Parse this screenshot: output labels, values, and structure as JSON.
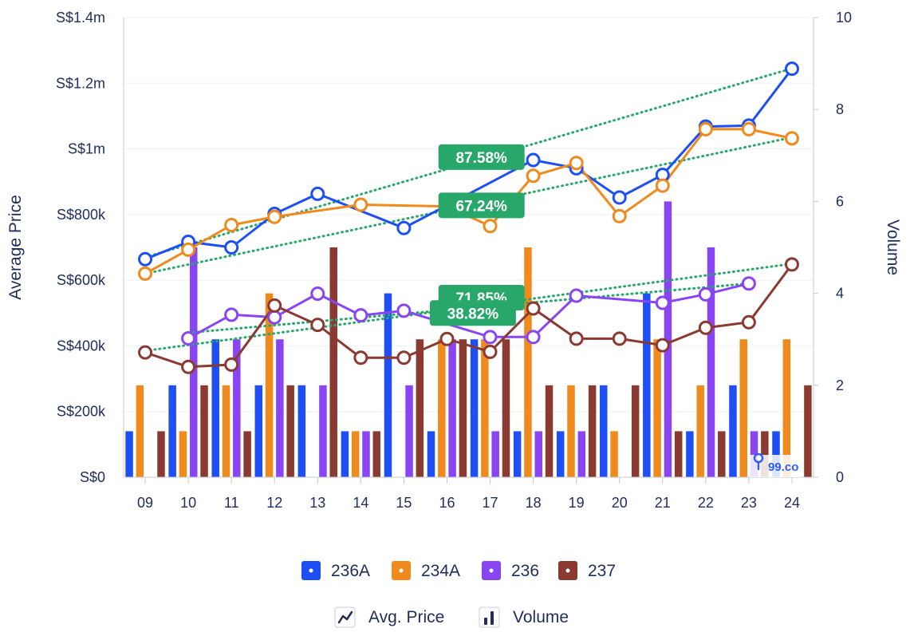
{
  "watermark": "99.co",
  "chart_data": {
    "type": "bar+line",
    "title": "",
    "xlabel": "",
    "ylabel": "Average Price",
    "y2label": "Volume",
    "categories": [
      "09",
      "10",
      "11",
      "12",
      "13",
      "14",
      "15",
      "16",
      "17",
      "18",
      "19",
      "20",
      "21",
      "22",
      "23",
      "24"
    ],
    "ylim": [
      0,
      1400000
    ],
    "y2lim": [
      0,
      10
    ],
    "y_ticks": [
      {
        "v": 0,
        "label": "S$0"
      },
      {
        "v": 200000,
        "label": "S$200k"
      },
      {
        "v": 400000,
        "label": "S$400k"
      },
      {
        "v": 600000,
        "label": "S$600k"
      },
      {
        "v": 800000,
        "label": "S$800k"
      },
      {
        "v": 1000000,
        "label": "S$1m"
      },
      {
        "v": 1200000,
        "label": "S$1.2m"
      },
      {
        "v": 1400000,
        "label": "S$1.4m"
      }
    ],
    "y2_ticks": [
      {
        "v": 0,
        "label": "0"
      },
      {
        "v": 2,
        "label": "2"
      },
      {
        "v": 4,
        "label": "4"
      },
      {
        "v": 6,
        "label": "6"
      },
      {
        "v": 8,
        "label": "8"
      },
      {
        "v": 10,
        "label": "10"
      }
    ],
    "series": [
      {
        "name": "236A",
        "color": "#1e4ff5",
        "volume": [
          1,
          2,
          3,
          2,
          2,
          1,
          4,
          1,
          3,
          1,
          1,
          2,
          4,
          1,
          2,
          1
        ],
        "avg_price": [
          664000,
          717000,
          700000,
          802000,
          863000,
          null,
          759000,
          null,
          null,
          966000,
          941000,
          852000,
          921000,
          1068000,
          1071000,
          1244000
        ]
      },
      {
        "name": "234A",
        "color": "#f08a1c",
        "volume": [
          2,
          1,
          2,
          4,
          0,
          1,
          0,
          3,
          3,
          5,
          2,
          1,
          3,
          2,
          3,
          3
        ],
        "avg_price": [
          620000,
          693000,
          768000,
          793000,
          null,
          830000,
          null,
          825000,
          765000,
          918000,
          957000,
          795000,
          888000,
          1060000,
          1060000,
          1032000
        ]
      },
      {
        "name": "236",
        "color": "#8a45f2",
        "volume": [
          0,
          5,
          3,
          3,
          2,
          1,
          2,
          3,
          1,
          1,
          1,
          0,
          6,
          5,
          1,
          0
        ],
        "avg_price": [
          null,
          423000,
          495000,
          487000,
          559000,
          493000,
          507000,
          null,
          427000,
          427000,
          553000,
          null,
          531000,
          557000,
          590000,
          null
        ]
      },
      {
        "name": "237",
        "color": "#8b3a32",
        "volume": [
          1,
          2,
          1,
          2,
          5,
          1,
          3,
          3,
          3,
          2,
          2,
          2,
          1,
          1,
          1,
          2
        ],
        "avg_price": [
          380000,
          336000,
          343000,
          523000,
          464000,
          364000,
          364000,
          421000,
          382000,
          514000,
          422000,
          422000,
          402000,
          455000,
          472000,
          648000
        ]
      }
    ],
    "trendlines": [
      {
        "series": "236A",
        "color": "#27a86a",
        "from": [
          0,
          670000
        ],
        "to": [
          15,
          1245000
        ],
        "label": "87.58%",
        "label_at": [
          7.8,
          975000
        ]
      },
      {
        "series": "234A",
        "color": "#27a86a",
        "from": [
          0,
          620000
        ],
        "to": [
          15,
          1035000
        ],
        "label": "67.24%",
        "label_at": [
          7.8,
          828000
        ]
      },
      {
        "series": "236",
        "color": "#27a86a",
        "from": [
          1,
          440000
        ],
        "to": [
          14,
          590000
        ],
        "label": "71.85%",
        "label_at": [
          7.8,
          547000
        ]
      },
      {
        "series": "237",
        "color": "#27a86a",
        "from": [
          0,
          385000
        ],
        "to": [
          15,
          650000
        ],
        "label": "38.82%",
        "label_at": [
          7.6,
          500000
        ]
      }
    ],
    "legend": {
      "series": [
        "236A",
        "234A",
        "236",
        "237"
      ],
      "types": [
        {
          "icon": "line-chart-icon",
          "label": "Avg. Price"
        },
        {
          "icon": "bar-chart-icon",
          "label": "Volume"
        }
      ]
    }
  }
}
